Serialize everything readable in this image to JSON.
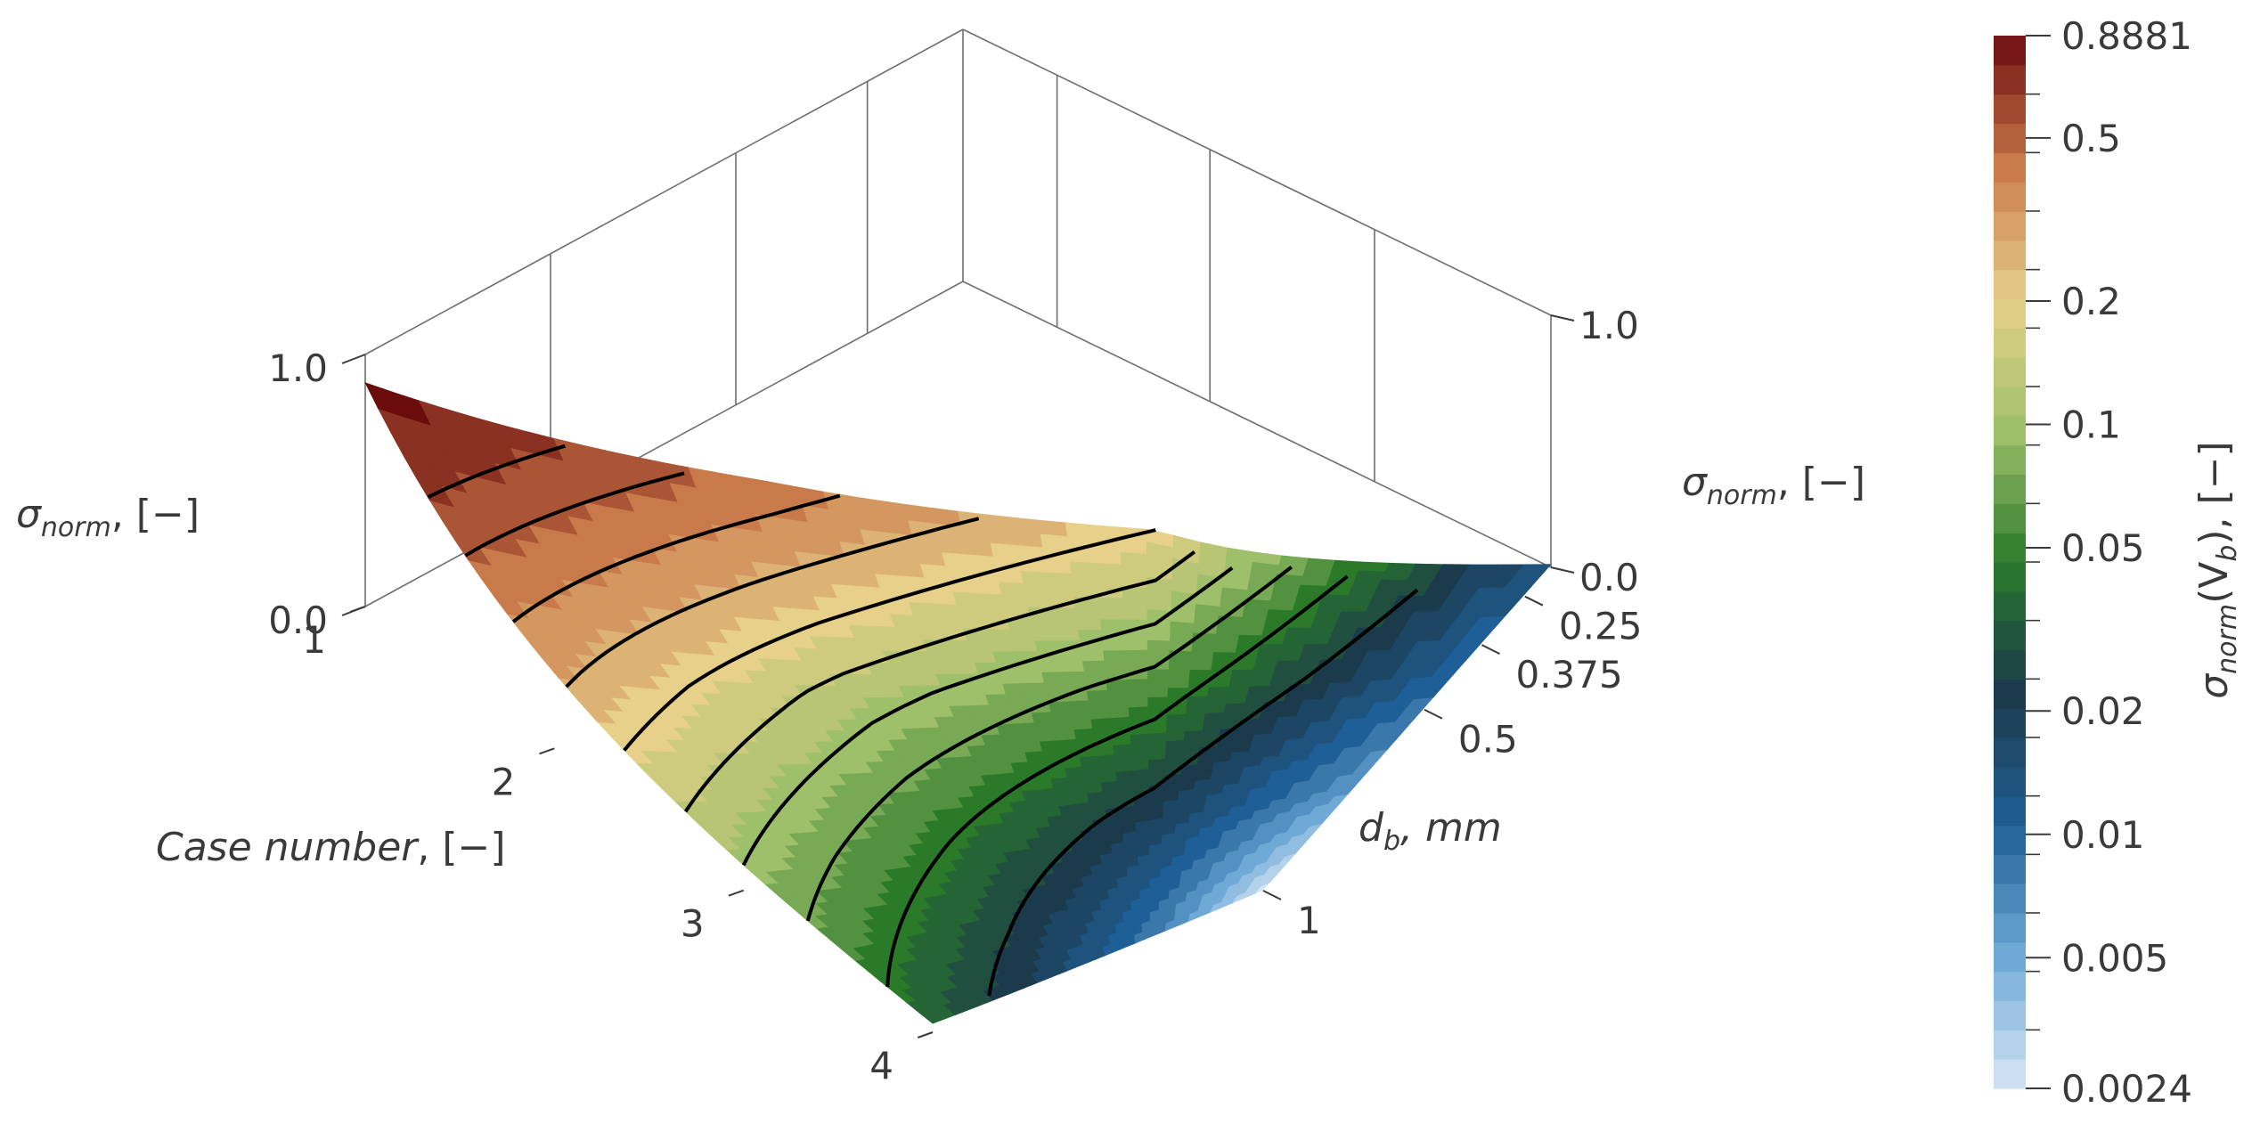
{
  "chart_data": {
    "type": "surface",
    "axes": {
      "case": {
        "label_main": "Case number",
        "label_unit": ", [−]",
        "ticks": [
          "1",
          "2",
          "3",
          "4"
        ],
        "values": [
          1,
          2,
          3,
          4
        ]
      },
      "db": {
        "label_sym": "d",
        "label_sub": "b",
        "label_unit": ", mm",
        "ticks": [
          "0.25",
          "0.375",
          "0.5",
          "1"
        ],
        "values": [
          0.25,
          0.375,
          0.5,
          1
        ]
      },
      "z_left": {
        "label_sym": "σ",
        "label_sub": "norm",
        "label_unit": ", [−]",
        "ticks": [
          "0.0",
          "1.0"
        ],
        "range": [
          0,
          1
        ]
      },
      "z_right": {
        "label_sym": "σ",
        "label_sub": "norm",
        "label_unit": ", [−]",
        "ticks": [
          "0.0",
          "1.0"
        ],
        "range": [
          0,
          1
        ]
      }
    },
    "surface": {
      "rows_case": [
        1,
        2,
        3,
        4
      ],
      "cols_db": [
        0.25,
        0.375,
        0.5,
        1
      ],
      "z": [
        [
          0.8881,
          0.45,
          0.2,
          0.012
        ],
        [
          0.3,
          0.12,
          0.06,
          0.01
        ],
        [
          0.1,
          0.045,
          0.02,
          0.006
        ],
        [
          0.035,
          0.018,
          0.008,
          0.0024
        ]
      ]
    },
    "colorbar": {
      "title_sym": "σ",
      "title_sub": "norm",
      "title_mid": "(V",
      "title_mid_sub": "b",
      "title_end": "), [−]",
      "scale": "log",
      "range": [
        0.0024,
        0.8881
      ],
      "tick_labels": [
        "0.8881",
        "0.5",
        "0.2",
        "0.1",
        "0.05",
        "0.02",
        "0.01",
        "0.005",
        "0.0024"
      ],
      "tick_values": [
        0.8881,
        0.5,
        0.2,
        0.1,
        0.05,
        0.02,
        0.01,
        0.005,
        0.0024
      ],
      "colors": [
        "#d6e6f4",
        "#6fa9d6",
        "#1f5f97",
        "#1b3a4b",
        "#2a7a2a",
        "#9fc06a",
        "#e6d08a",
        "#c97a4a",
        "#6b0c0c"
      ]
    },
    "grid": true,
    "contour_lines": true
  }
}
